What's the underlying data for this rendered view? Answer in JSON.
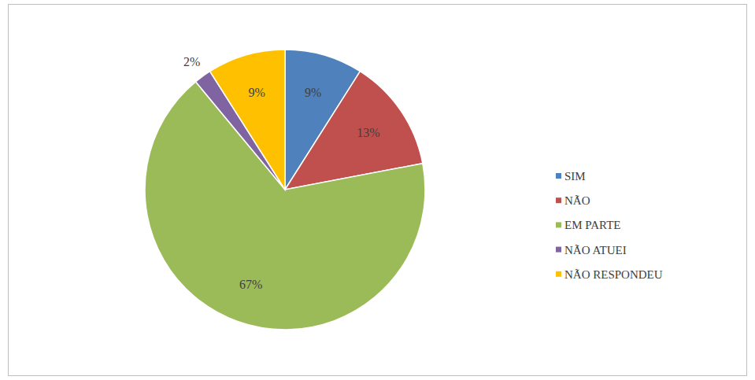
{
  "chart_data": {
    "type": "pie",
    "categories": [
      "SIM",
      "NÃO",
      "EM PARTE",
      "NÃO ATUEI",
      "NÃO RESPONDEU"
    ],
    "values": [
      9,
      13,
      67,
      2,
      9
    ],
    "value_labels": [
      "9%",
      "13%",
      "67%",
      "2%",
      "9%"
    ],
    "colors": [
      "#4f81bd",
      "#c0504d",
      "#9bbb59",
      "#8064a2",
      "#ffc000"
    ],
    "data_labels": true,
    "legend": "right"
  }
}
